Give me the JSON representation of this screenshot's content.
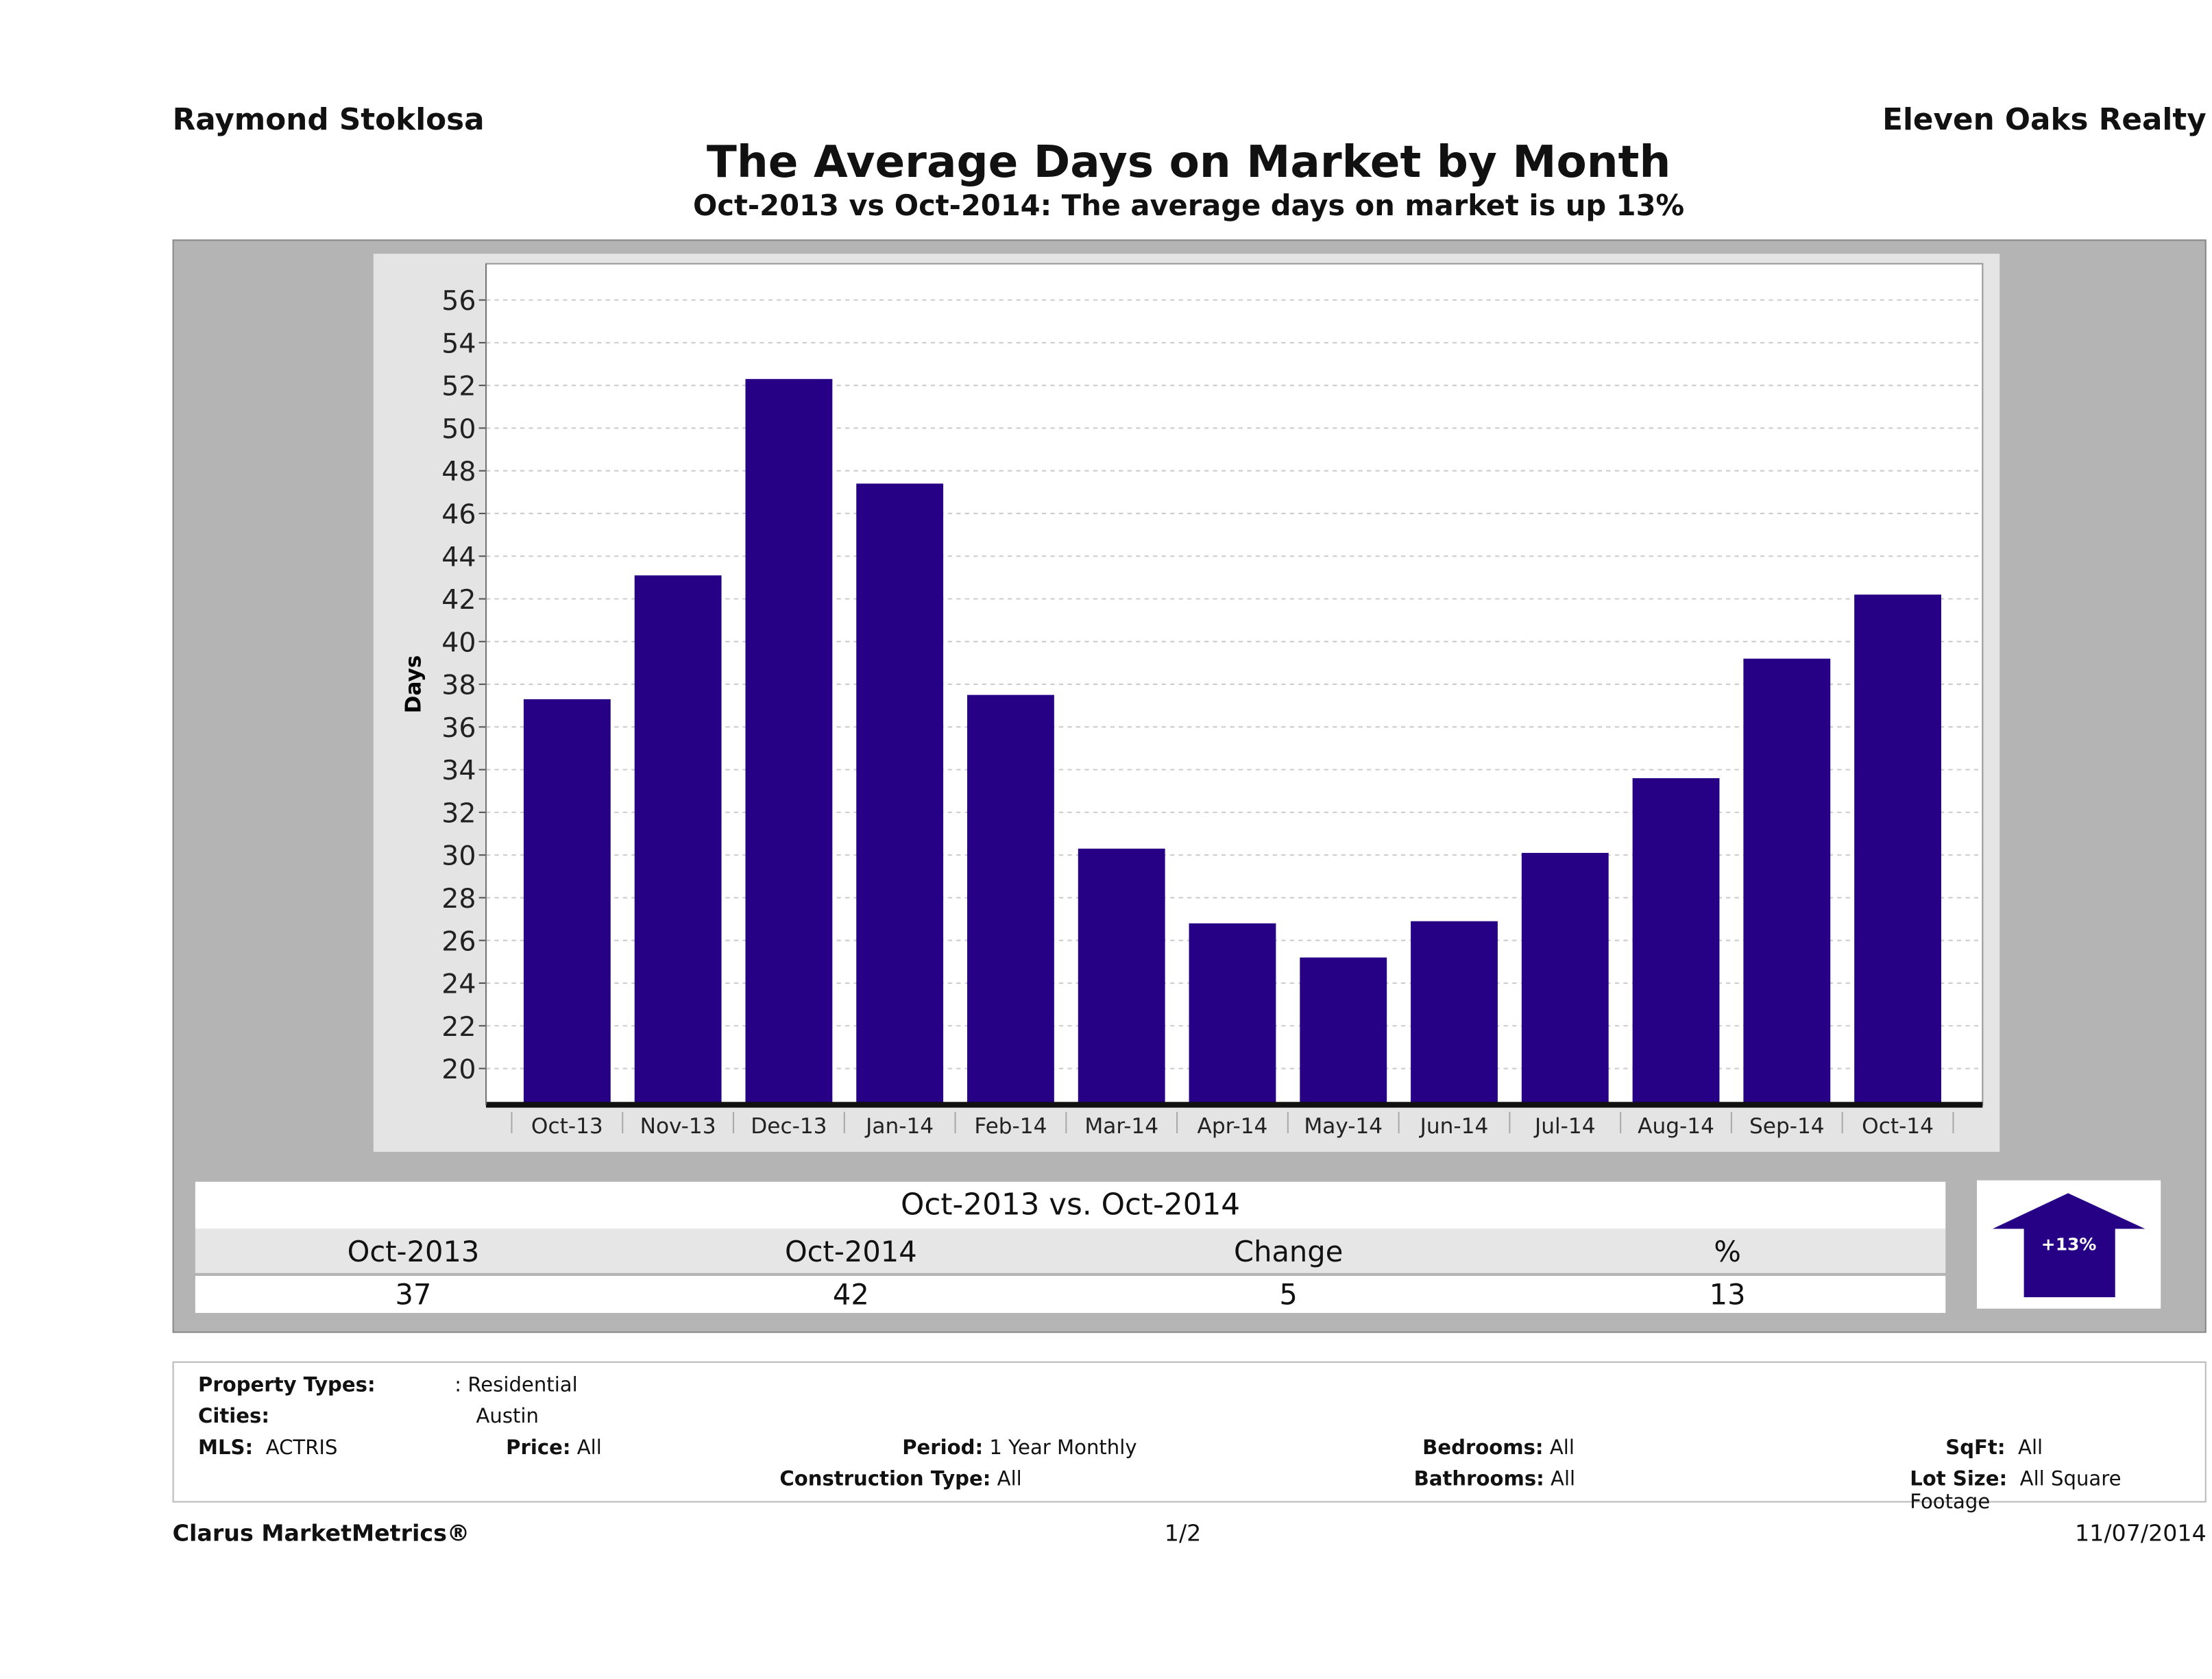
{
  "header": {
    "agent": "Raymond Stoklosa",
    "brokerage": "Eleven Oaks Realty",
    "title": "The Average Days on Market by Month",
    "subtitle": "Oct-2013 vs Oct-2014: The average days on market is up 13%"
  },
  "chart_data": {
    "type": "bar",
    "title": "The Average Days on Market by Month",
    "xlabel": "",
    "ylabel": "Days",
    "categories": [
      "Oct-13",
      "Nov-13",
      "Dec-13",
      "Jan-14",
      "Feb-14",
      "Mar-14",
      "Apr-14",
      "May-14",
      "Jun-14",
      "Jul-14",
      "Aug-14",
      "Sep-14",
      "Oct-14"
    ],
    "values": [
      37.3,
      43.1,
      52.3,
      47.4,
      37.5,
      30.3,
      26.8,
      25.2,
      26.9,
      30.1,
      33.6,
      39.2,
      42.2
    ],
    "ylim": [
      18.3,
      57.7
    ],
    "yticks": [
      20,
      22,
      24,
      26,
      28,
      30,
      32,
      34,
      36,
      38,
      40,
      42,
      44,
      46,
      48,
      50,
      52,
      54,
      56
    ],
    "grid": true,
    "bar_color": "#260085"
  },
  "comparison": {
    "title": "Oct-2013 vs. Oct-2014",
    "headers": [
      "Oct-2013",
      "Oct-2014",
      "Change",
      "%"
    ],
    "values": [
      "37",
      "42",
      "5",
      "13"
    ],
    "badge": "+13%",
    "badge_icon": "arrow-up-icon",
    "badge_color": "#260085"
  },
  "criteria": {
    "property_types_label": "Property Types:",
    "property_types": ": Residential",
    "cities_label": "Cities:",
    "cities": "Austin",
    "mls_label": "MLS:",
    "mls": "ACTRIS",
    "price_label": "Price:",
    "price": "All",
    "period_label": "Period:",
    "period": "1 Year Monthly",
    "construction_label": "Construction Type:",
    "construction": "All",
    "bedrooms_label": "Bedrooms:",
    "bedrooms": "All",
    "bathrooms_label": "Bathrooms:",
    "bathrooms": "All",
    "sqft_label": "SqFt:",
    "sqft": "All",
    "lot_label": "Lot Size:",
    "lot": "All Square Footage"
  },
  "footer": {
    "brand": "Clarus MarketMetrics®",
    "page": "1/2",
    "date": "11/07/2014"
  }
}
